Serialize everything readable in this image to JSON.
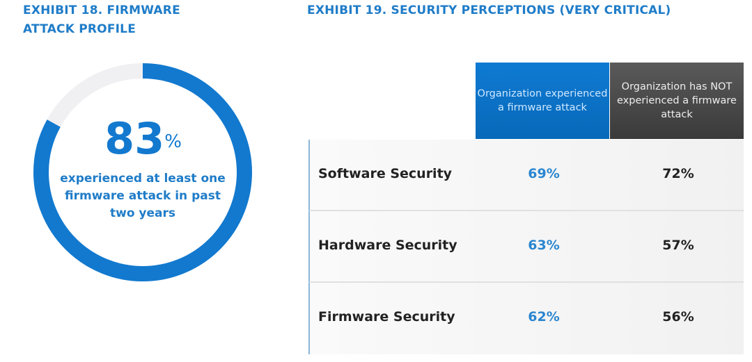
{
  "exhibit18": {
    "title": "EXHIBIT 18. FIRMWARE ATTACK PROFILE",
    "value": 83,
    "value_text": "83",
    "unit": "%",
    "caption": "experienced at least one firmware attack in past two years"
  },
  "exhibit19": {
    "title": "EXHIBIT 19. SECURITY PERCEPTIONS (VERY CRITICAL)",
    "columns": [
      "Organization experienced a firmware attack",
      "Organization has NOT experienced a firmware attack"
    ],
    "rows": [
      {
        "label": "Software Security",
        "experienced": "69%",
        "not_experienced": "72%"
      },
      {
        "label": "Hardware Security",
        "experienced": "63%",
        "not_experienced": "57%"
      },
      {
        "label": "Firmware Security",
        "experienced": "62%",
        "not_experienced": "56%"
      }
    ]
  },
  "colors": {
    "accent": "#1279cf",
    "track": "#f0f0f2",
    "dark_header": "#444444"
  },
  "chart_data": [
    {
      "type": "pie",
      "title": "EXHIBIT 18. FIRMWARE ATTACK PROFILE",
      "values": [
        83,
        17
      ],
      "categories": [
        "experienced at least one firmware attack in past two years",
        ""
      ]
    },
    {
      "type": "table",
      "title": "EXHIBIT 19. SECURITY PERCEPTIONS (VERY CRITICAL)",
      "categories": [
        "Software Security",
        "Hardware Security",
        "Firmware Security"
      ],
      "series": [
        {
          "name": "Organization experienced a firmware attack",
          "values": [
            69,
            63,
            62
          ]
        },
        {
          "name": "Organization has NOT experienced a firmware attack",
          "values": [
            72,
            57,
            56
          ]
        }
      ]
    }
  ]
}
